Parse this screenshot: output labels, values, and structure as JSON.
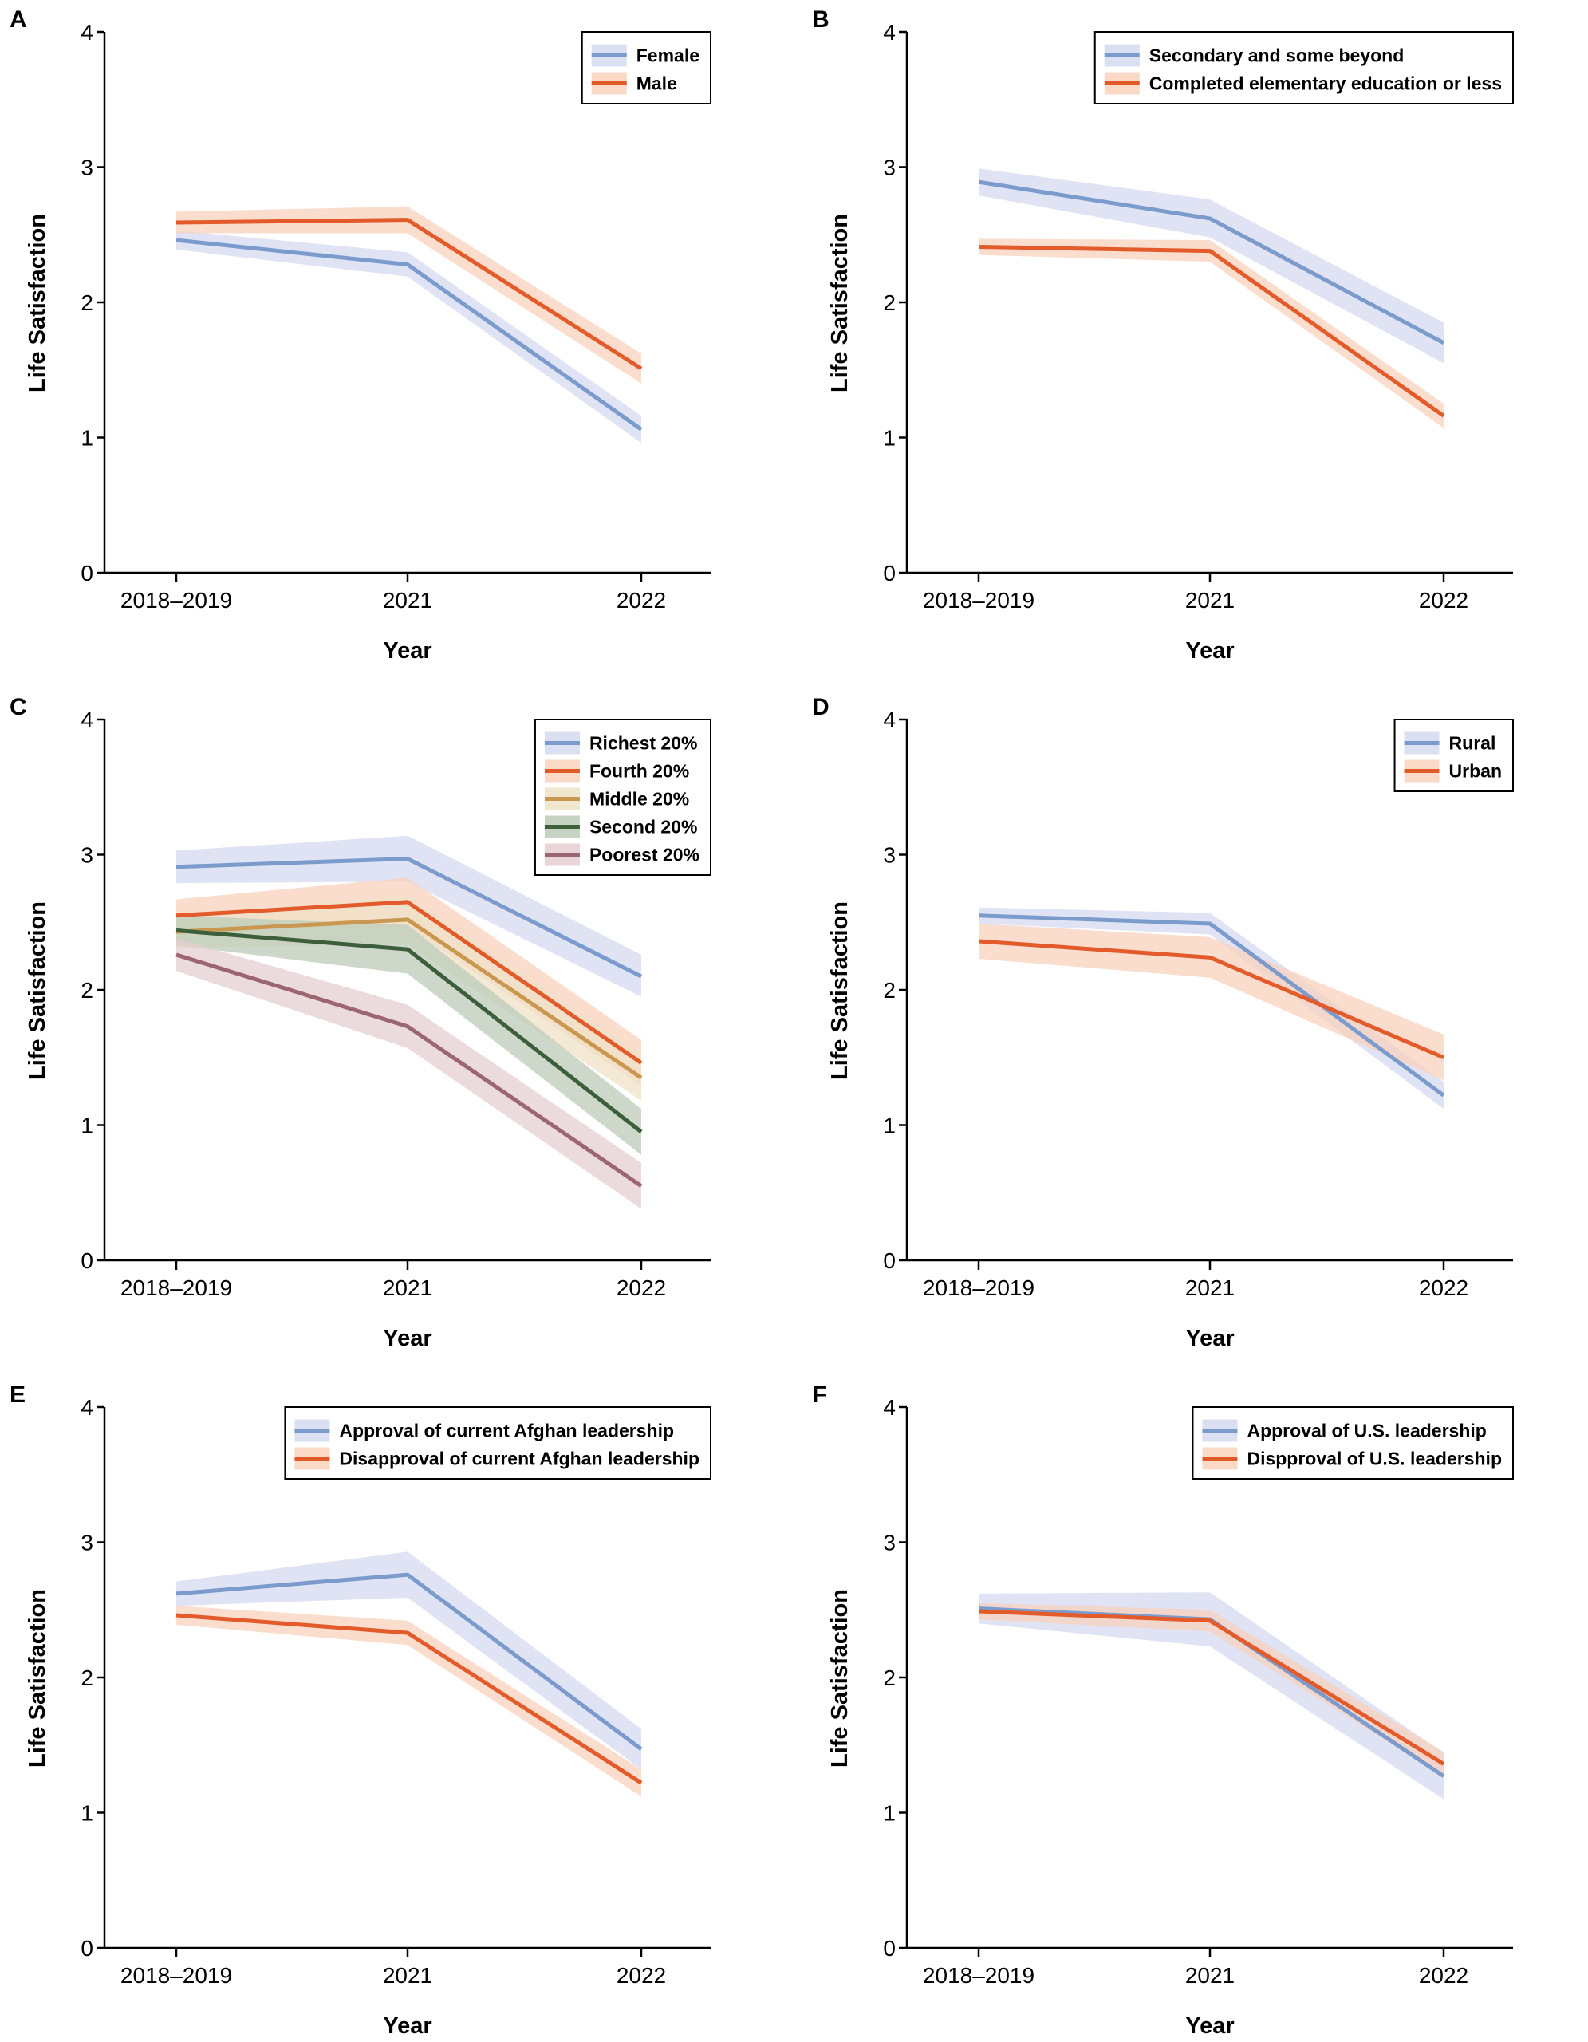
{
  "colors": {
    "blue": "#7b9bcc",
    "orange": "#e35b2a",
    "tan": "#c9974f",
    "green": "#3d5e3b",
    "mauve": "#9c6670",
    "blue_band": "#d4daf0",
    "orange_band": "#f9d2bd",
    "tan_band": "#efe2c5",
    "green_band": "#bccbb8",
    "mauve_band": "#e6cfd1"
  },
  "chart_data": [
    {
      "panel": "A",
      "type": "line",
      "x": [
        "2018–2019",
        "2021",
        "2022"
      ],
      "xlabel": "Year",
      "ylabel": "Life Satisfaction",
      "ylim": [
        0,
        4
      ],
      "yticks": [
        "0",
        "1",
        "2",
        "3",
        "4"
      ],
      "legend_position": "top-right",
      "series": [
        {
          "name": "Female",
          "color": "blue",
          "band_color": "blue_band",
          "values": [
            2.46,
            2.28,
            1.06
          ],
          "lower": [
            2.39,
            2.19,
            0.96
          ],
          "upper": [
            2.53,
            2.37,
            1.16
          ]
        },
        {
          "name": "Male",
          "color": "orange",
          "band_color": "orange_band",
          "values": [
            2.59,
            2.61,
            1.51
          ],
          "lower": [
            2.51,
            2.51,
            1.4
          ],
          "upper": [
            2.67,
            2.71,
            1.62
          ]
        }
      ]
    },
    {
      "panel": "B",
      "type": "line",
      "x": [
        "2018–2019",
        "2021",
        "2022"
      ],
      "xlabel": "Year",
      "ylabel": "Life Satisfaction",
      "ylim": [
        0,
        4
      ],
      "yticks": [
        "0",
        "1",
        "2",
        "3",
        "4"
      ],
      "legend_position": "top-right",
      "series": [
        {
          "name": "Secondary and some beyond",
          "color": "blue",
          "band_color": "blue_band",
          "values": [
            2.89,
            2.62,
            1.7
          ],
          "lower": [
            2.79,
            2.48,
            1.55
          ],
          "upper": [
            2.99,
            2.76,
            1.85
          ]
        },
        {
          "name": "Completed elementary education or less",
          "color": "orange",
          "band_color": "orange_band",
          "values": [
            2.41,
            2.38,
            1.16
          ],
          "lower": [
            2.35,
            2.3,
            1.07
          ],
          "upper": [
            2.47,
            2.46,
            1.25
          ]
        }
      ]
    },
    {
      "panel": "C",
      "type": "line",
      "x": [
        "2018–2019",
        "2021",
        "2022"
      ],
      "xlabel": "Year",
      "ylabel": "Life Satisfaction",
      "ylim": [
        0,
        4
      ],
      "yticks": [
        "0",
        "1",
        "2",
        "3",
        "4"
      ],
      "legend_position": "top-right",
      "series": [
        {
          "name": "Richest 20%",
          "color": "blue",
          "band_color": "blue_band",
          "values": [
            2.91,
            2.97,
            2.1
          ],
          "lower": [
            2.79,
            2.8,
            1.95
          ],
          "upper": [
            3.03,
            3.14,
            2.26
          ]
        },
        {
          "name": "Fourth 20%",
          "color": "orange",
          "band_color": "orange_band",
          "values": [
            2.55,
            2.65,
            1.46
          ],
          "lower": [
            2.43,
            2.47,
            1.29
          ],
          "upper": [
            2.67,
            2.83,
            1.63
          ]
        },
        {
          "name": "Middle 20%",
          "color": "tan",
          "band_color": "tan_band",
          "values": [
            2.43,
            2.52,
            1.35
          ],
          "lower": [
            2.31,
            2.34,
            1.18
          ],
          "upper": [
            2.55,
            2.7,
            1.52
          ]
        },
        {
          "name": "Second 20%",
          "color": "green",
          "band_color": "green_band",
          "values": [
            2.44,
            2.3,
            0.95
          ],
          "lower": [
            2.33,
            2.12,
            0.78
          ],
          "upper": [
            2.55,
            2.48,
            1.12
          ]
        },
        {
          "name": "Poorest 20%",
          "color": "mauve",
          "band_color": "mauve_band",
          "values": [
            2.26,
            1.73,
            0.55
          ],
          "lower": [
            2.14,
            1.57,
            0.38
          ],
          "upper": [
            2.38,
            1.89,
            0.72
          ]
        }
      ]
    },
    {
      "panel": "D",
      "type": "line",
      "x": [
        "2018–2019",
        "2021",
        "2022"
      ],
      "xlabel": "Year",
      "ylabel": "Life Satisfaction",
      "ylim": [
        0,
        4
      ],
      "yticks": [
        "0",
        "1",
        "2",
        "3",
        "4"
      ],
      "legend_position": "top-right",
      "series": [
        {
          "name": "Rural",
          "color": "blue",
          "band_color": "blue_band",
          "values": [
            2.55,
            2.49,
            1.22
          ],
          "lower": [
            2.49,
            2.41,
            1.12
          ],
          "upper": [
            2.61,
            2.57,
            1.32
          ]
        },
        {
          "name": "Urban",
          "color": "orange",
          "band_color": "orange_band",
          "values": [
            2.36,
            2.24,
            1.5
          ],
          "lower": [
            2.23,
            2.09,
            1.33
          ],
          "upper": [
            2.49,
            2.39,
            1.67
          ]
        }
      ]
    },
    {
      "panel": "E",
      "type": "line",
      "x": [
        "2018–2019",
        "2021",
        "2022"
      ],
      "xlabel": "Year",
      "ylabel": "Life Satisfaction",
      "ylim": [
        0,
        4
      ],
      "yticks": [
        "0",
        "1",
        "2",
        "3",
        "4"
      ],
      "legend_position": "top-right",
      "series": [
        {
          "name": "Approval of current Afghan leadership",
          "color": "blue",
          "band_color": "blue_band",
          "values": [
            2.62,
            2.76,
            1.47
          ],
          "lower": [
            2.53,
            2.59,
            1.32
          ],
          "upper": [
            2.71,
            2.93,
            1.62
          ]
        },
        {
          "name": "Disapproval of current Afghan leadership",
          "color": "orange",
          "band_color": "orange_band",
          "values": [
            2.46,
            2.33,
            1.22
          ],
          "lower": [
            2.39,
            2.24,
            1.12
          ],
          "upper": [
            2.53,
            2.42,
            1.32
          ]
        }
      ]
    },
    {
      "panel": "F",
      "type": "line",
      "x": [
        "2018–2019",
        "2021",
        "2022"
      ],
      "xlabel": "Year",
      "ylabel": "Life Satisfaction",
      "ylim": [
        0,
        4
      ],
      "yticks": [
        "0",
        "1",
        "2",
        "3",
        "4"
      ],
      "legend_position": "top-right",
      "series": [
        {
          "name": "Approval of U.S. leadership",
          "color": "blue",
          "band_color": "blue_band",
          "values": [
            2.51,
            2.43,
            1.27
          ],
          "lower": [
            2.4,
            2.23,
            1.1
          ],
          "upper": [
            2.62,
            2.63,
            1.44
          ]
        },
        {
          "name": "Dispproval of U.S. leadership",
          "color": "orange",
          "band_color": "orange_band",
          "values": [
            2.49,
            2.42,
            1.36
          ],
          "lower": [
            2.43,
            2.34,
            1.27
          ],
          "upper": [
            2.55,
            2.5,
            1.45
          ]
        }
      ]
    }
  ]
}
